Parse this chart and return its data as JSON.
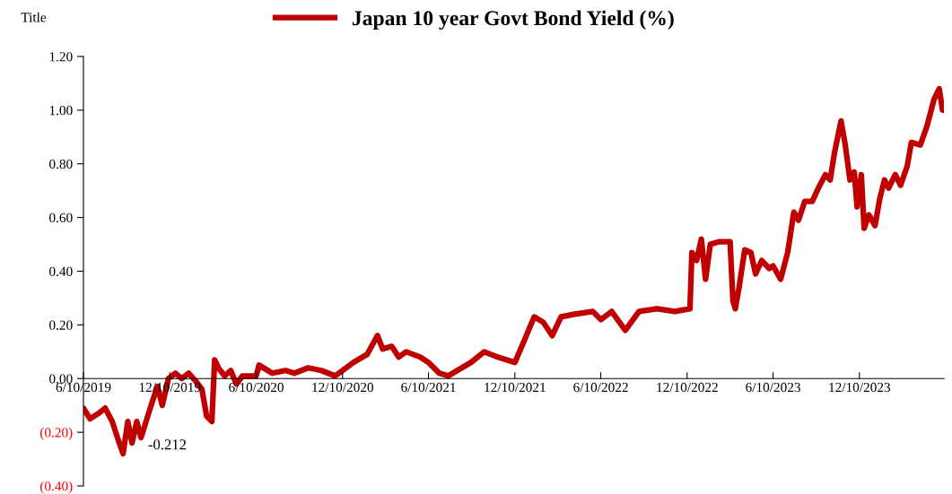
{
  "chart_data": {
    "type": "line",
    "ylabel": "Title",
    "legend": "top",
    "grid": false,
    "marker": "none",
    "line_style": "solid",
    "annotations": [
      "-0.212"
    ],
    "xlim": [
      "2019-06-10",
      "2024-06-06"
    ],
    "xticks": [
      {
        "value": "2019-06-10",
        "label": "6/10/2019"
      },
      {
        "value": "2019-12-10",
        "label": "12/10/2019"
      },
      {
        "value": "2020-06-10",
        "label": "6/10/2020"
      },
      {
        "value": "2020-12-10",
        "label": "12/10/2020"
      },
      {
        "value": "2021-06-10",
        "label": "6/10/2021"
      },
      {
        "value": "2021-12-10",
        "label": "12/10/2021"
      },
      {
        "value": "2022-06-10",
        "label": "6/10/2022"
      },
      {
        "value": "2022-12-10",
        "label": "12/10/2022"
      },
      {
        "value": "2023-06-10",
        "label": "6/10/2023"
      },
      {
        "value": "2023-12-10",
        "label": "12/10/2023"
      }
    ],
    "ylim": [
      -0.4,
      1.2
    ],
    "yticks": [
      {
        "value": -0.4,
        "label": "(0.40)"
      },
      {
        "value": -0.2,
        "label": "(0.20)"
      },
      {
        "value": 0,
        "label": "0.00"
      },
      {
        "value": 0.2,
        "label": "0.20"
      },
      {
        "value": 0.4,
        "label": "0.40"
      },
      {
        "value": 0.6,
        "label": "0.60"
      },
      {
        "value": 0.8,
        "label": "0.80"
      },
      {
        "value": 1.0,
        "label": "1.00"
      },
      {
        "value": 1.2,
        "label": "1.20"
      }
    ],
    "x": [
      "2019-06-10",
      "2019-06-24",
      "2019-07-12",
      "2019-07-26",
      "2019-08-10",
      "2019-08-23",
      "2019-09-02",
      "2019-09-12",
      "2019-09-21",
      "2019-10-01",
      "2019-10-10",
      "2019-10-26",
      "2019-11-04",
      "2019-11-14",
      "2019-11-24",
      "2019-12-07",
      "2019-12-22",
      "2020-01-04",
      "2020-01-19",
      "2020-02-03",
      "2020-02-16",
      "2020-02-26",
      "2020-03-08",
      "2020-03-14",
      "2020-03-22",
      "2020-04-04",
      "2020-04-17",
      "2020-04-29",
      "2020-05-12",
      "2020-06-10",
      "2020-06-16",
      "2020-07-14",
      "2020-08-11",
      "2020-08-30",
      "2020-09-28",
      "2020-10-26",
      "2020-11-24",
      "2020-12-10",
      "2021-01-02",
      "2021-01-31",
      "2021-02-22",
      "2021-03-05",
      "2021-03-24",
      "2021-04-08",
      "2021-04-24",
      "2021-05-24",
      "2021-06-10",
      "2021-07-03",
      "2021-07-22",
      "2021-08-10",
      "2021-09-08",
      "2021-10-06",
      "2021-11-04",
      "2021-11-22",
      "2021-12-10",
      "2022-01-01",
      "2022-01-20",
      "2022-02-08",
      "2022-02-27",
      "2022-03-18",
      "2022-04-16",
      "2022-05-24",
      "2022-06-10",
      "2022-07-03",
      "2022-08-01",
      "2022-08-30",
      "2022-10-07",
      "2022-11-14",
      "2022-12-16",
      "2022-12-20",
      "2022-12-30",
      "2023-01-09",
      "2023-01-18",
      "2023-01-28",
      "2023-02-16",
      "2023-03-11",
      "2023-03-17",
      "2023-03-22",
      "2023-03-30",
      "2023-04-11",
      "2023-04-24",
      "2023-05-04",
      "2023-05-17",
      "2023-06-02",
      "2023-06-10",
      "2023-06-26",
      "2023-07-11",
      "2023-07-24",
      "2023-08-03",
      "2023-08-16",
      "2023-09-01",
      "2023-09-14",
      "2023-09-29",
      "2023-10-09",
      "2023-10-18",
      "2023-11-01",
      "2023-11-10",
      "2023-11-20",
      "2023-11-29",
      "2023-12-05",
      "2023-12-14",
      "2023-12-20",
      "2023-12-30",
      "2024-01-12",
      "2024-01-22",
      "2024-02-01",
      "2024-02-10",
      "2024-02-24",
      "2024-03-06",
      "2024-03-20",
      "2024-03-29",
      "2024-04-17",
      "2024-05-01",
      "2024-05-16",
      "2024-05-27",
      "2024-06-03"
    ],
    "series": [
      {
        "name": "Japan 10 year Govt Bond Yield (%)",
        "color": "#c00000",
        "values": [
          -0.11,
          -0.15,
          -0.13,
          -0.11,
          -0.16,
          -0.23,
          -0.28,
          -0.16,
          -0.24,
          -0.16,
          -0.22,
          -0.13,
          -0.08,
          -0.03,
          -0.1,
          0.0,
          0.02,
          0.0,
          0.02,
          -0.01,
          -0.04,
          -0.14,
          -0.16,
          0.07,
          0.04,
          0.01,
          0.03,
          -0.02,
          0.01,
          0.01,
          0.05,
          0.02,
          0.03,
          0.02,
          0.04,
          0.03,
          0.01,
          0.03,
          0.06,
          0.09,
          0.16,
          0.11,
          0.12,
          0.08,
          0.1,
          0.08,
          0.06,
          0.02,
          0.01,
          0.03,
          0.06,
          0.1,
          0.08,
          0.07,
          0.06,
          0.15,
          0.23,
          0.21,
          0.16,
          0.23,
          0.24,
          0.25,
          0.22,
          0.25,
          0.18,
          0.25,
          0.26,
          0.25,
          0.26,
          0.47,
          0.44,
          0.52,
          0.37,
          0.5,
          0.51,
          0.51,
          0.29,
          0.26,
          0.34,
          0.48,
          0.47,
          0.39,
          0.44,
          0.41,
          0.42,
          0.37,
          0.47,
          0.62,
          0.59,
          0.66,
          0.66,
          0.71,
          0.76,
          0.74,
          0.84,
          0.96,
          0.87,
          0.74,
          0.77,
          0.64,
          0.76,
          0.56,
          0.61,
          0.57,
          0.67,
          0.74,
          0.71,
          0.76,
          0.72,
          0.79,
          0.88,
          0.87,
          0.94,
          1.04,
          1.08,
          1.0
        ]
      }
    ]
  }
}
